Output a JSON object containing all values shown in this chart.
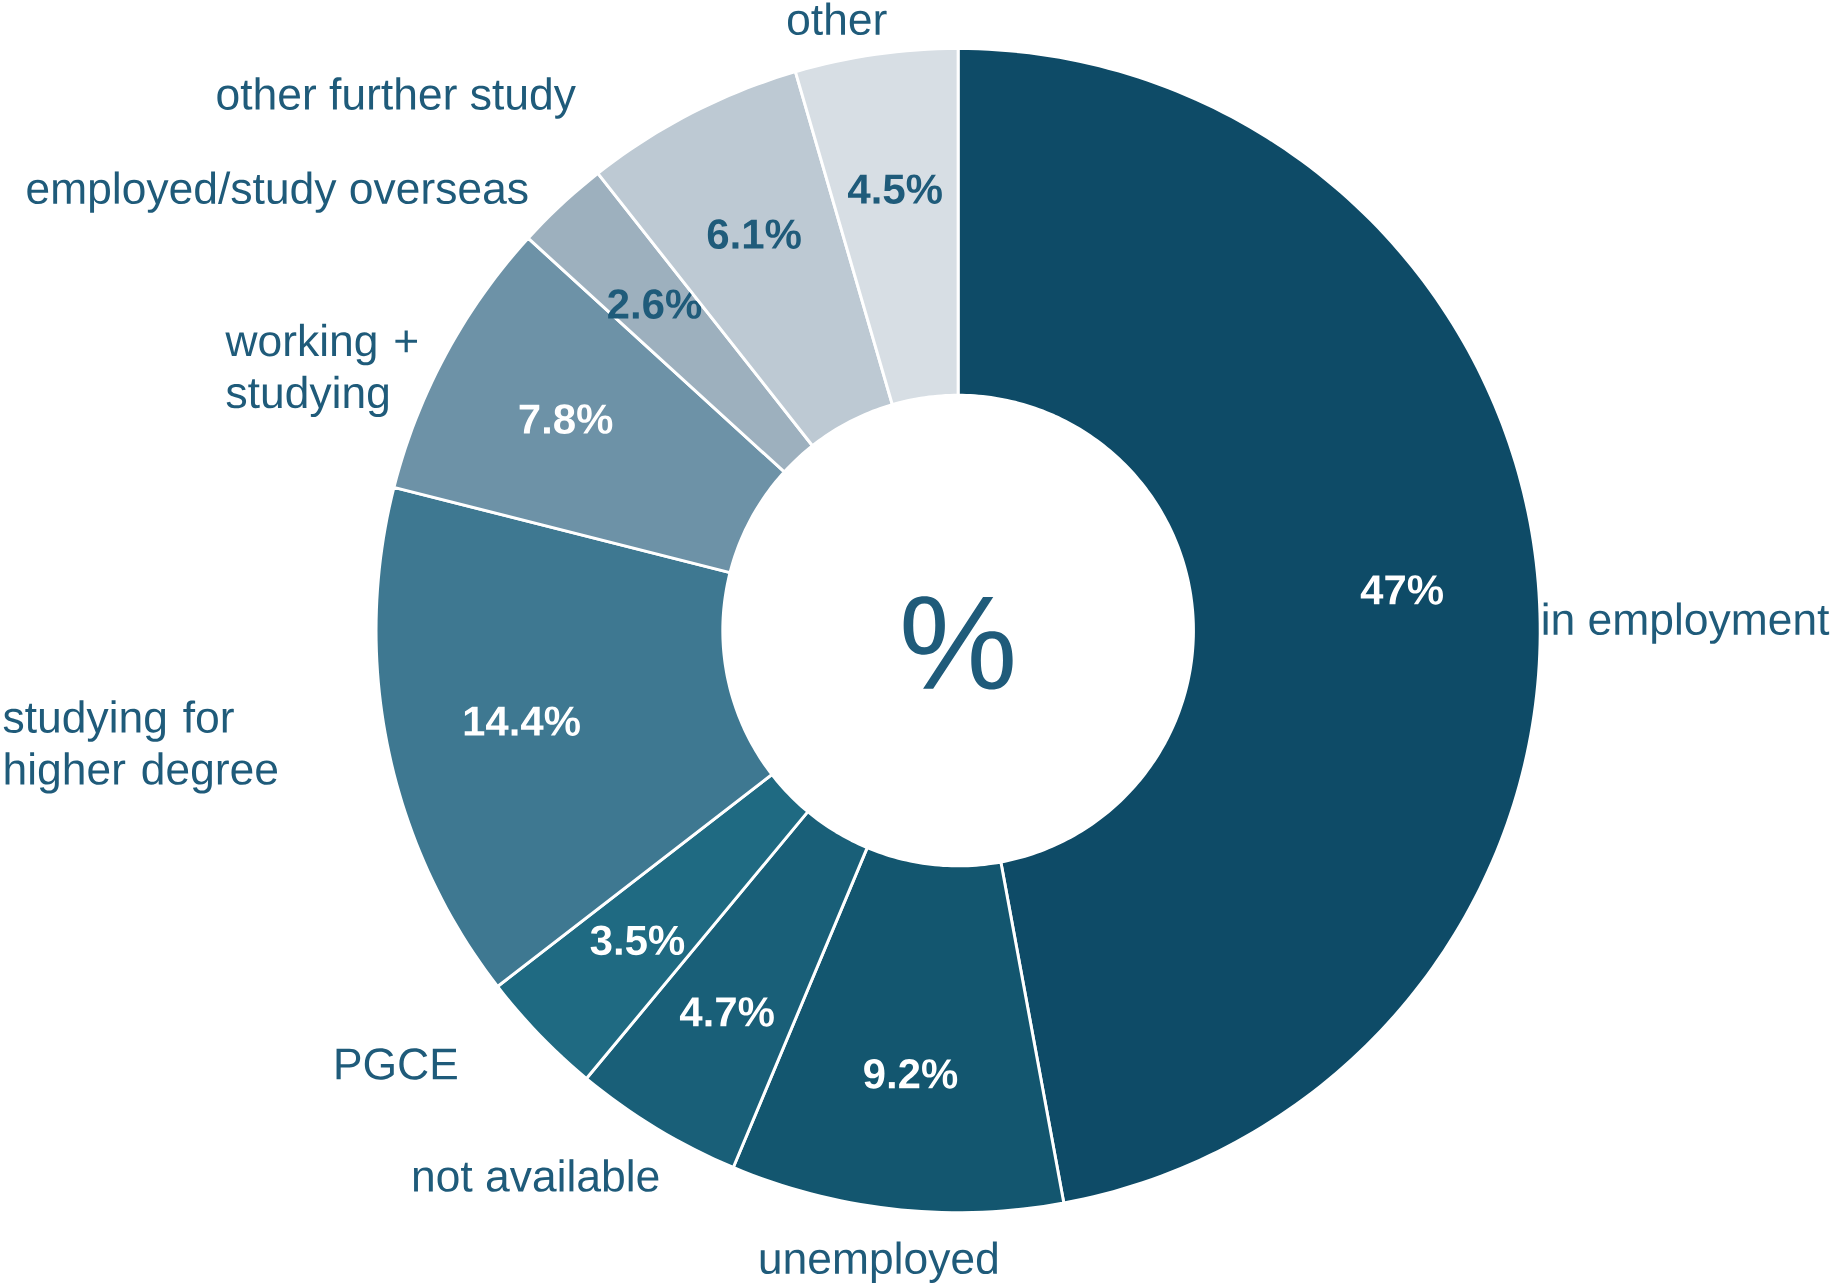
{
  "chart_data": {
    "type": "donut",
    "title": "%",
    "categories": [
      "in employment",
      "unemployed",
      "not available",
      "PGCE",
      "studying for higher degree",
      "working + studying",
      "employed/study overseas",
      "other further study",
      "other"
    ],
    "values": [
      47,
      9.2,
      4.7,
      3.5,
      14.4,
      7.8,
      2.6,
      6.1,
      4.5
    ],
    "value_labels": [
      "47%",
      "9.2%",
      "4.7%",
      "3.5%",
      "14.4%",
      "7.8%",
      "2.6%",
      "6.1%",
      "4.5%"
    ],
    "colors": [
      "#0e4b67",
      "#13566f",
      "#195f78",
      "#1f6a82",
      "#3e7891",
      "#6d92a7",
      "#9db0be",
      "#bdc9d3",
      "#d7dee4"
    ]
  }
}
